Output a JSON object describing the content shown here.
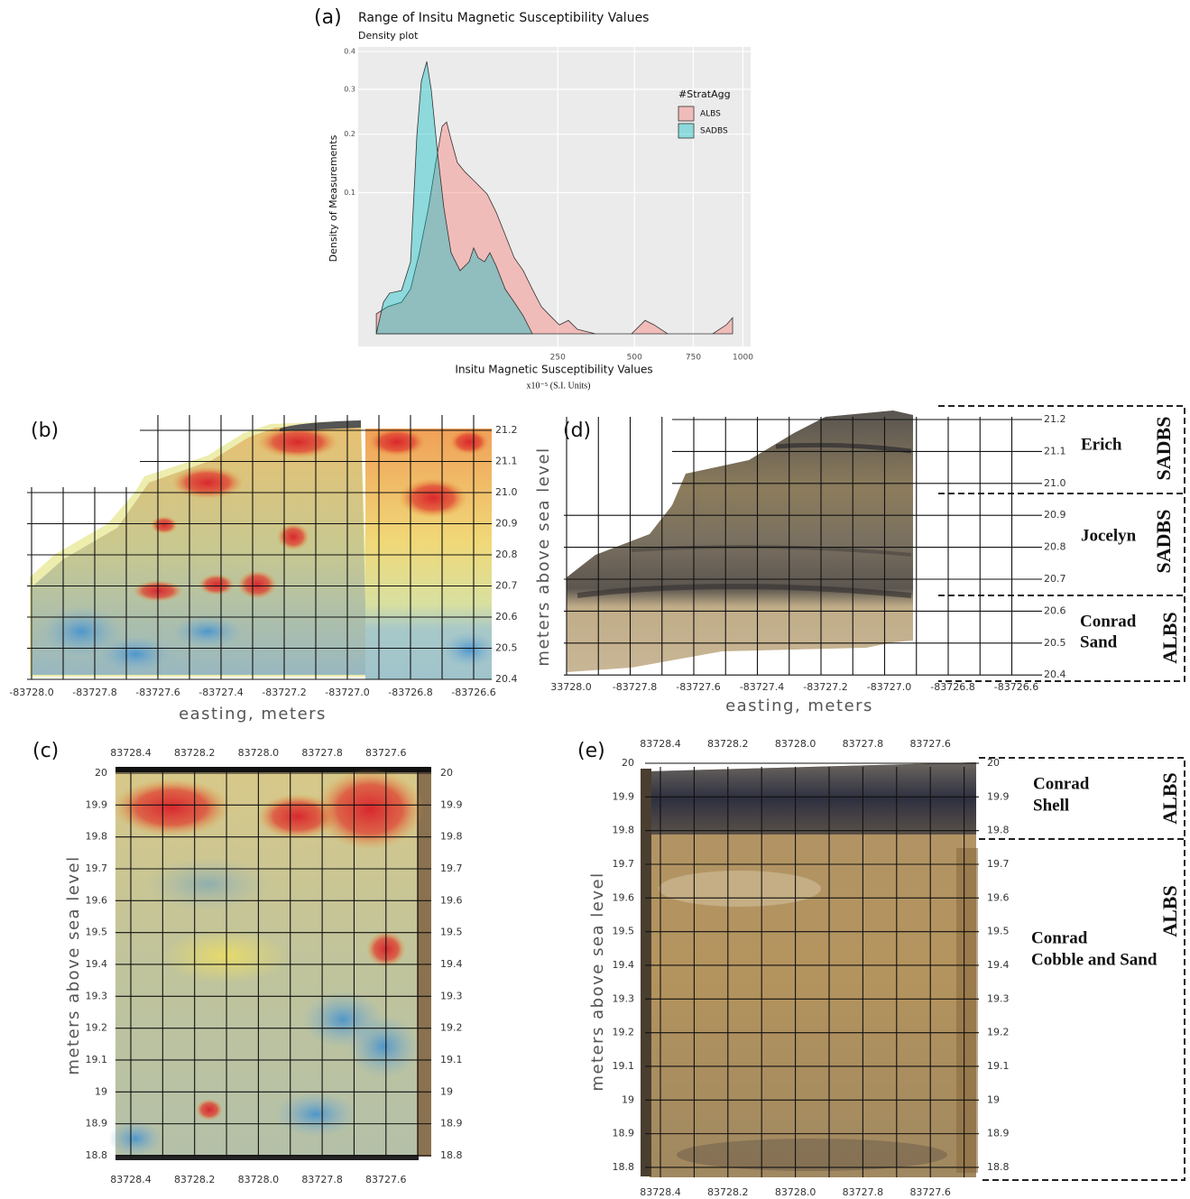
{
  "chart_data": {
    "type": "density",
    "panel_label": "(a)",
    "title": "Range of Insitu Magnetic Susceptibility Values",
    "subtitle": "Density plot",
    "x_label": "Insitu Magnetic Susceptibility Values",
    "x_units": "x10⁻⁵ (S.I. Units)",
    "y_label": "Density of Measurements",
    "x_scale": "sqrt",
    "y_scale": "sqrt",
    "xlim": [
      0,
      1042
    ],
    "ylim": [
      0,
      0.413
    ],
    "xticks": [
      250,
      500,
      750,
      1000
    ],
    "yticks": [
      0.1,
      0.2,
      0.3,
      0.4
    ],
    "grid": true,
    "legend_title": "#StratAgg",
    "legend_position": "right",
    "series": [
      {
        "name": "ALBS",
        "color": "#F8766D",
        "x": [
          0.1,
          1.7,
          6.1,
          10.5,
          16,
          22.8,
          29.1,
          35.2,
          39.9,
          44.9,
          52.4,
          61.8,
          74.5,
          95.7,
          111.4,
          128.3,
          146.3,
          165.5,
          186,
          207.6,
          230.3,
          254.3,
          279.5,
          305.8,
          362,
          488.9,
          541.3,
          577.8,
          634.7,
          843.6,
          912,
          945
        ],
        "values": [
          0.002,
          0.0037,
          0.005,
          0.01,
          0.033,
          0.08,
          0.147,
          0.216,
          0.225,
          0.189,
          0.147,
          0.132,
          0.118,
          0.098,
          0.074,
          0.049,
          0.029,
          0.02,
          0.01,
          0.0037,
          0.0016,
          0.0004,
          0.0009,
          0.0001,
          0,
          0,
          0.0009,
          0.0004,
          0,
          0,
          0.0004,
          0.0013
        ]
      },
      {
        "name": "SADBS",
        "color": "#00BFC4",
        "x": [
          0.1,
          0.85,
          2.1,
          6.1,
          10.5,
          14.3,
          17.3,
          21.4,
          25.1,
          30.8,
          37,
          44.9,
          55.8,
          67.9,
          74.5,
          81.3,
          91.3,
          100.3,
          111.4,
          128.3,
          146.3,
          165.5,
          186
        ],
        "values": [
          0,
          0.005,
          0.0083,
          0.0094,
          0.026,
          0.198,
          0.32,
          0.372,
          0.298,
          0.163,
          0.08,
          0.033,
          0.02,
          0.026,
          0.037,
          0.029,
          0.026,
          0.033,
          0.023,
          0.01,
          0.005,
          0.0016,
          0
        ]
      }
    ]
  },
  "panels": {
    "b": {
      "label": "(b)",
      "x_label": "easting, meters",
      "xticks": [
        "-83728.0",
        "-83727.8",
        "-83727.6",
        "-83727.4",
        "-83727.2",
        "-83727.0",
        "-83726.8",
        "-83726.6"
      ],
      "yticks": [
        "21.2",
        "21.1",
        "21.0",
        "20.9",
        "20.8",
        "20.7",
        "20.6",
        "20.5",
        "20.4"
      ]
    },
    "c": {
      "label": "(c)",
      "y_label": "meters above sea level",
      "xticks": [
        "83728.4",
        "83728.2",
        "83728.0",
        "83727.8",
        "83727.6"
      ],
      "yticks": [
        "20",
        "19.9",
        "19.8",
        "19.7",
        "19.6",
        "19.5",
        "19.4",
        "19.3",
        "19.2",
        "19.1",
        "19",
        "18.9",
        "18.8"
      ]
    },
    "d": {
      "label": "(d)",
      "x_label": "easting, meters",
      "y_label": "meters above sea level",
      "xticks": [
        "33728.0",
        "-83727.8",
        "-83727.6",
        "-83727.4",
        "-83727.2",
        "-83727.0",
        "-83726.8",
        "-83726.6"
      ],
      "yticks": [
        "21.2",
        "21.1",
        "21.0",
        "20.9",
        "20.8",
        "20.7",
        "20.6",
        "20.5",
        "20.4"
      ],
      "units": [
        {
          "name": "Erich",
          "group": "SADBS"
        },
        {
          "name": "Jocelyn",
          "group": "SADBS"
        },
        {
          "name": [
            "Conrad",
            "Sand"
          ],
          "group": "ALBS"
        }
      ]
    },
    "e": {
      "label": "(e)",
      "y_label": "meters above sea level",
      "xticks": [
        "83728.4",
        "83728.2",
        "83728.0",
        "83727.8",
        "83727.6"
      ],
      "yticks": [
        "20",
        "19.9",
        "19.8",
        "19.7",
        "19.6",
        "19.5",
        "19.4",
        "19.3",
        "19.2",
        "19.1",
        "19",
        "18.9",
        "18.8"
      ],
      "units": [
        {
          "name": [
            "Conrad",
            "Shell"
          ],
          "group": "ALBS"
        },
        {
          "name": [
            "Conrad",
            "Cobble and Sand"
          ],
          "group": "ALBS"
        }
      ]
    }
  }
}
